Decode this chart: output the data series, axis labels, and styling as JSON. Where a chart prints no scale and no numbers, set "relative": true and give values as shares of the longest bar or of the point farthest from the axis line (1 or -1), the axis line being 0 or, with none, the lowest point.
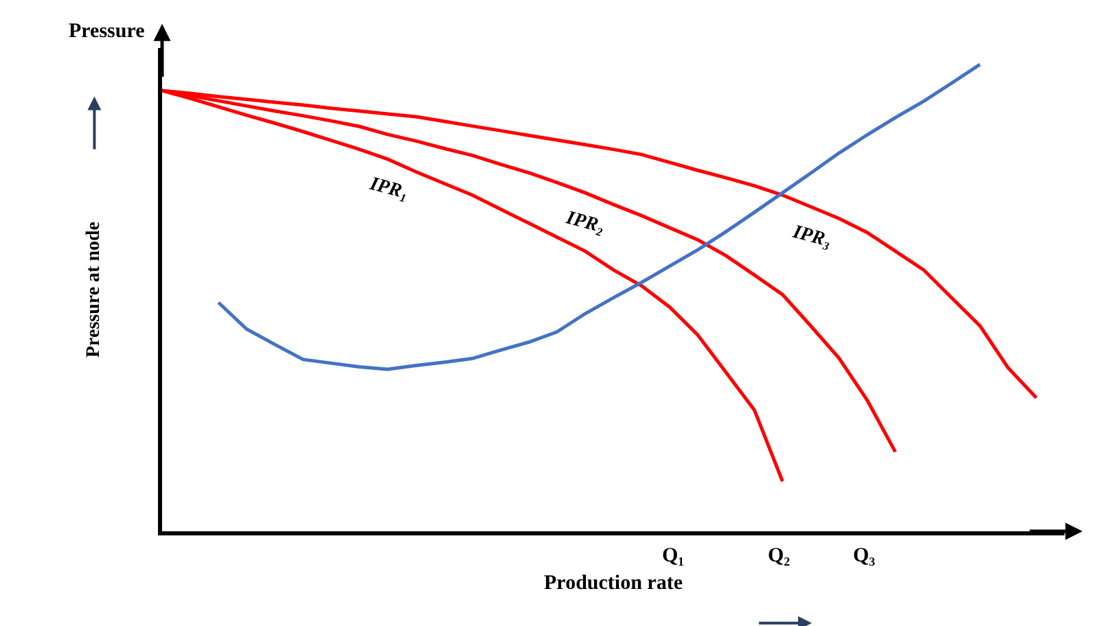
{
  "chart_data": {
    "type": "line",
    "relative": true,
    "xlabel": "Production rate",
    "ylabel": "Pressure at node",
    "legend": false,
    "marker": "none",
    "line_style": "solid",
    "categories": [
      null,
      null,
      null,
      null,
      null,
      null,
      null,
      null,
      null,
      null,
      null,
      null,
      null,
      null,
      null,
      null,
      null,
      null,
      null,
      null,
      null,
      null,
      null,
      null,
      null,
      null,
      null,
      null,
      null,
      null,
      null,
      null,
      null
    ],
    "series": [
      {
        "name": "IPR₁",
        "color": "#ff0000",
        "values": [
          0.944,
          0.927,
          0.909,
          0.891,
          0.874,
          0.856,
          0.837,
          0.818,
          0.797,
          0.77,
          0.745,
          0.72,
          0.69,
          0.66,
          0.63,
          0.6,
          0.56,
          0.526,
          0.48,
          0.42,
          0.34,
          0.26,
          0.107,
          null,
          null,
          null,
          null,
          null,
          null,
          null,
          null,
          null,
          null
        ]
      },
      {
        "name": "IPR₂",
        "color": "#ff0000",
        "values": [
          0.944,
          0.933,
          0.922,
          0.911,
          0.9,
          0.89,
          0.879,
          0.867,
          0.85,
          0.836,
          0.82,
          0.805,
          0.786,
          0.768,
          0.747,
          0.725,
          0.7,
          0.676,
          0.65,
          0.624,
          0.59,
          0.549,
          0.507,
          0.44,
          0.371,
          0.281,
          0.17,
          null,
          null,
          null,
          null,
          null,
          null
        ]
      },
      {
        "name": "IPR₃",
        "color": "#ff0000",
        "values": [
          0.944,
          0.938,
          0.931,
          0.925,
          0.919,
          0.913,
          0.906,
          0.9,
          0.894,
          0.888,
          0.878,
          0.868,
          0.858,
          0.848,
          0.838,
          0.828,
          0.818,
          0.807,
          0.79,
          0.773,
          0.757,
          0.74,
          0.72,
          0.695,
          0.67,
          0.64,
          0.6,
          0.56,
          0.5,
          0.44,
          0.35,
          0.286,
          null
        ]
      },
      {
        "color": "#4472c4",
        "values": [
          null,
          null,
          0.49,
          0.433,
          0.4,
          0.368,
          0.36,
          0.352,
          0.347,
          0.355,
          0.362,
          0.37,
          0.388,
          0.405,
          0.427,
          0.466,
          0.5,
          0.533,
          0.568,
          0.603,
          0.642,
          0.683,
          0.725,
          0.767,
          0.81,
          0.849,
          0.886,
          0.921,
          0.96,
          1.0,
          null,
          null,
          null
        ]
      }
    ],
    "annotations": [
      "Pressure",
      "Q₁",
      "Q₂",
      "Q₃"
    ]
  }
}
